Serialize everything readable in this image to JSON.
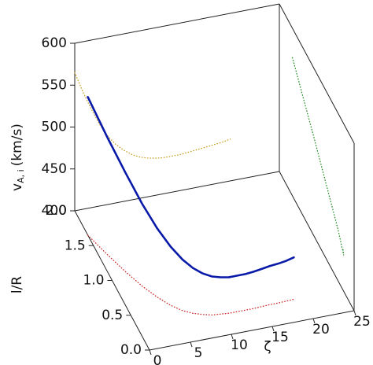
{
  "chart_data": {
    "type": "line3d",
    "xlabel": "ζ",
    "ylabel": "l/R",
    "zlabel": "v",
    "zlabel_sub": "A, i",
    "zlabel_unit": "(km/s)",
    "xlim": [
      0,
      25
    ],
    "xticks": [
      0,
      5,
      10,
      15,
      20,
      25
    ],
    "ylim": [
      0,
      2
    ],
    "yticks": [
      {
        "value": 0,
        "label": "0.0"
      },
      0.5,
      {
        "value": 1,
        "label": "1.0"
      },
      1.5,
      {
        "value": 2,
        "label": "2.0"
      }
    ],
    "zlim": [
      400,
      600
    ],
    "zticks": [
      400,
      450,
      500,
      550,
      600
    ],
    "series": [
      {
        "color": "#0a1aa8",
        "x": [
          0,
          1,
          2,
          3,
          4,
          5,
          6,
          7,
          8,
          9,
          10,
          11,
          12,
          13,
          14,
          15,
          16,
          17,
          18,
          19
        ],
        "y": [
          1.65,
          1.35,
          1.08,
          0.85,
          0.67,
          0.53,
          0.43,
          0.37,
          0.33,
          0.3,
          0.29,
          0.28,
          0.28,
          0.28,
          0.28,
          0.285,
          0.29,
          0.29,
          0.295,
          0.3
        ],
        "z": [
          565,
          540,
          518,
          498,
          482,
          470,
          461,
          454,
          449,
          446,
          444,
          443,
          443,
          443,
          444,
          445,
          446,
          447,
          448,
          450
        ]
      }
    ],
    "projection_colors": {
      "floor": "#cc2222",
      "back": "#c8a020",
      "side": "#1e8c1e"
    }
  }
}
